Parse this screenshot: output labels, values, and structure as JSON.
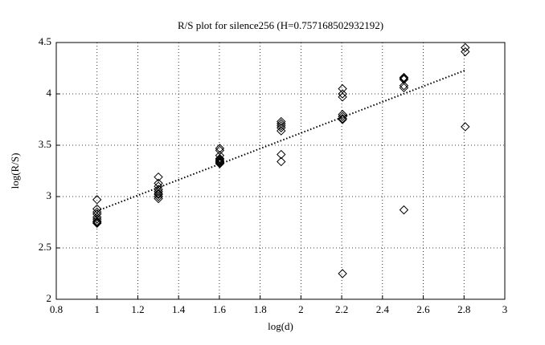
{
  "chart_data": {
    "type": "scatter",
    "title": "R/S plot for silence256 (H=0.757168502932192)",
    "x_label": "log(d)",
    "y_label": "log(R/S)",
    "xlim": [
      0.8,
      3
    ],
    "xticks": [
      0.8,
      1,
      1.2,
      1.4,
      1.6,
      1.8,
      2,
      2.2,
      2.4,
      2.6,
      2.8,
      3
    ],
    "ylim": [
      2,
      4.5
    ],
    "yticks": [
      2,
      2.5,
      3,
      3.5,
      4,
      4.5
    ],
    "grid": true,
    "color": "#000000",
    "x": [
      1,
      1,
      1,
      1,
      1,
      1,
      1,
      1,
      1,
      1.301,
      1.301,
      1.301,
      1.301,
      1.301,
      1.301,
      1.301,
      1.301,
      1.301,
      1.602,
      1.602,
      1.602,
      1.602,
      1.602,
      1.602,
      1.602,
      1.602,
      1.602,
      1.903,
      1.903,
      1.903,
      1.903,
      1.903,
      1.903,
      1.903,
      2.204,
      2.204,
      2.204,
      2.204,
      2.204,
      2.204,
      2.204,
      2.204,
      2.505,
      2.505,
      2.505,
      2.505,
      2.505,
      2.505,
      2.806,
      2.806,
      2.806
    ],
    "y": [
      2.97,
      2.88,
      2.85,
      2.83,
      2.8,
      2.78,
      2.76,
      2.75,
      2.74,
      3.19,
      3.13,
      3.1,
      3.07,
      3.05,
      3.03,
      3.02,
      3.0,
      2.98,
      3.47,
      3.45,
      3.4,
      3.37,
      3.36,
      3.35,
      3.34,
      3.33,
      3.32,
      3.73,
      3.71,
      3.69,
      3.67,
      3.64,
      3.41,
      3.34,
      4.05,
      4.0,
      3.97,
      3.8,
      3.78,
      3.76,
      3.75,
      2.25,
      4.16,
      4.15,
      4.14,
      4.08,
      4.06,
      2.87,
      4.45,
      4.41,
      3.68
    ],
    "fit": {
      "x": [
        1,
        2.806
      ],
      "y": [
        2.86,
        4.23
      ]
    }
  }
}
